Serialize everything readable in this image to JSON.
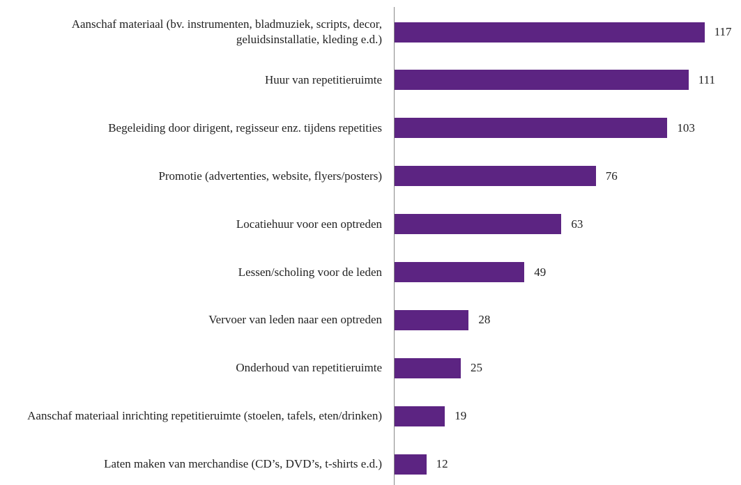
{
  "chart_data": {
    "type": "bar",
    "orientation": "horizontal",
    "categories": [
      "Aanschaf materiaal (bv. instrumenten, bladmuziek, scripts, decor, geluidsinstallatie, kleding e.d.)",
      "Huur van repetitieruimte",
      "Begeleiding door dirigent, regisseur enz. tijdens repetities",
      "Promotie (advertenties, website, flyers/posters)",
      "Locatiehuur voor een optreden",
      "Lessen/scholing voor de leden",
      "Vervoer van leden naar een optreden",
      "Onderhoud van repetitieruimte",
      "Aanschaf materiaal inrichting repetitieruimte (stoelen, tafels, eten/drinken)",
      "Laten maken van merchandise (CD’s, DVD’s, t-shirts e.d.)"
    ],
    "values": [
      117,
      111,
      103,
      76,
      63,
      49,
      28,
      25,
      19,
      12
    ],
    "color": "#5c2482",
    "xlim": [
      0,
      130
    ]
  }
}
